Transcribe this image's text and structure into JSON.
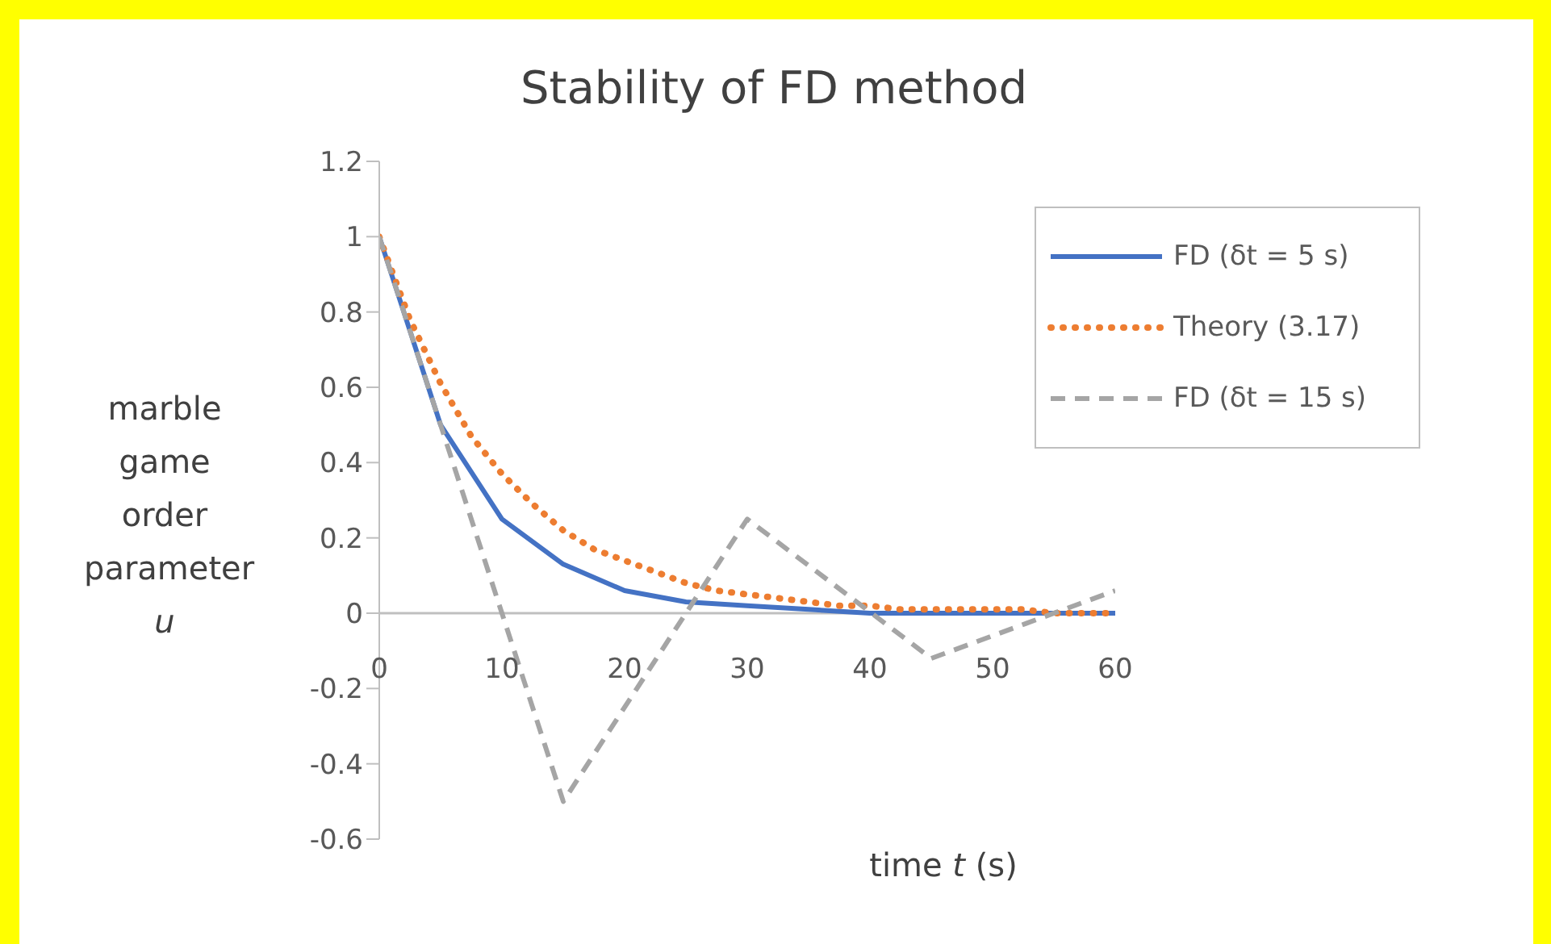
{
  "chart_data": {
    "type": "line",
    "title": "Stability of FD method",
    "xlabel": "time t (s)",
    "ylabel": "marble game order parameter u",
    "xlim": [
      0,
      60
    ],
    "xticks": [
      0,
      10,
      20,
      30,
      40,
      50,
      60
    ],
    "ylim": [
      -0.6,
      1.2
    ],
    "yticks": [
      -0.6,
      -0.4,
      -0.2,
      0,
      0.2,
      0.4,
      0.6,
      0.8,
      1,
      1.2
    ],
    "legend": "top right",
    "marker": "none",
    "series": [
      {
        "name": "FD (δt = 5 s)",
        "color": "#4472c4",
        "line_style": "solid",
        "x": [
          0,
          5,
          10,
          15,
          20,
          25,
          30,
          35,
          40,
          45,
          50,
          55,
          60
        ],
        "values": [
          1,
          0.5,
          0.25,
          0.13,
          0.06,
          0.03,
          0.02,
          0.01,
          0,
          0,
          0,
          0,
          0
        ]
      },
      {
        "name": "Theory (3.17)",
        "color": "#ed7d31",
        "line_style": "dotted",
        "x": [
          0,
          2.5,
          5,
          7.5,
          10,
          12.5,
          15,
          17.5,
          20,
          22.5,
          25,
          27.5,
          30,
          32.5,
          35,
          37.5,
          40,
          42.5,
          45,
          47.5,
          50,
          52.5,
          55,
          57.5,
          60
        ],
        "values": [
          1,
          0.78,
          0.61,
          0.47,
          0.37,
          0.29,
          0.22,
          0.17,
          0.14,
          0.11,
          0.08,
          0.06,
          0.05,
          0.04,
          0.03,
          0.02,
          0.02,
          0.01,
          0.01,
          0.01,
          0.01,
          0.01,
          0,
          0,
          0
        ]
      },
      {
        "name": "FD (δt = 15 s)",
        "color": "#a5a5a5",
        "line_style": "dashed",
        "x": [
          0,
          15,
          30,
          45,
          60
        ],
        "values": [
          1,
          -0.5,
          0.25,
          -0.12,
          0.06
        ]
      }
    ]
  }
}
